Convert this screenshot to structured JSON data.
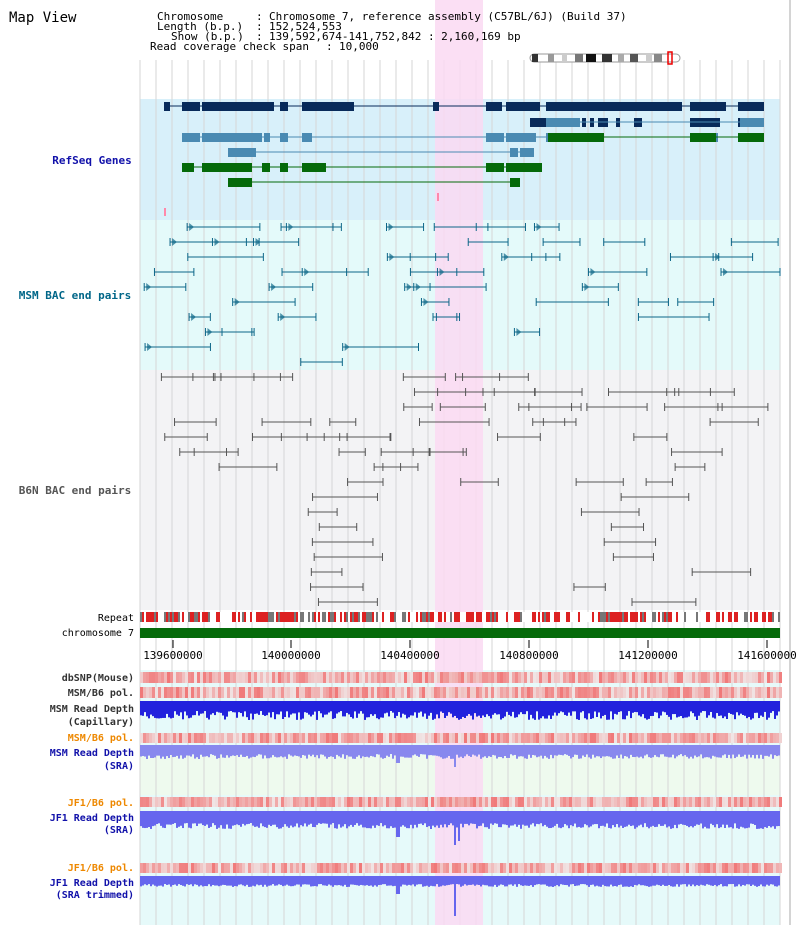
{
  "title": "Map View",
  "info": {
    "chromosome_label": "Chromosome",
    "chromosome_value": "Chromosome 7, reference assembly (C57BL/6J) (Build 37)",
    "length_label": "Length (b.p.)",
    "length_value": "152,524,553",
    "show_label": "Show (b.p.)",
    "show_value": "139,592,674-141,752,842 : 2,160,169 bp",
    "coverage_label": "Read coverage check span",
    "coverage_value": "10,000"
  },
  "tracks": {
    "refseq": "RefSeq Genes",
    "msm_bac": "MSM BAC end pairs",
    "b6n_bac": "B6N BAC end pairs",
    "repeat": "Repeat",
    "chromosome": "chromosome 7",
    "dbsnp": "dbSNP(Mouse)",
    "msm_b6_pol_1": "MSM/B6 pol.",
    "msm_depth_cap_1": "MSM Read Depth",
    "msm_depth_cap_2": "(Capillary)",
    "msm_b6_pol_2": "MSM/B6 pol.",
    "msm_depth_sra_1": "MSM Read Depth",
    "msm_depth_sra_2": "(SRA)",
    "jf1_pol_1": "JF1/B6 pol.",
    "jf1_depth_sra_1": "JF1 Read Depth",
    "jf1_depth_sra_2": "(SRA)",
    "jf1_pol_2": "JF1/B6 pol.",
    "jf1_depth_trim_1": "JF1 Read Depth",
    "jf1_depth_trim_2": "(SRA trimmed)"
  },
  "axis_ticks": [
    "139600000",
    "140000000",
    "140400000",
    "140800000",
    "141200000",
    "141600000"
  ],
  "colors": {
    "refseq_bg": "#d8f0fa",
    "msm_bg": "#e4fafa",
    "b6n_bg": "#f3f3f5",
    "lower_bg": "#e6fafa",
    "highlight": "#fad9f2",
    "gene_dark": "#082a5a",
    "gene_mid": "#4a8ab2",
    "gene_green": "#056a0a",
    "msm_pair": "#0d6688",
    "b6n_pair": "#555555",
    "chromosome": "#056a0a",
    "label_blue": "#1111aa",
    "label_orange": "#ee8800"
  }
}
